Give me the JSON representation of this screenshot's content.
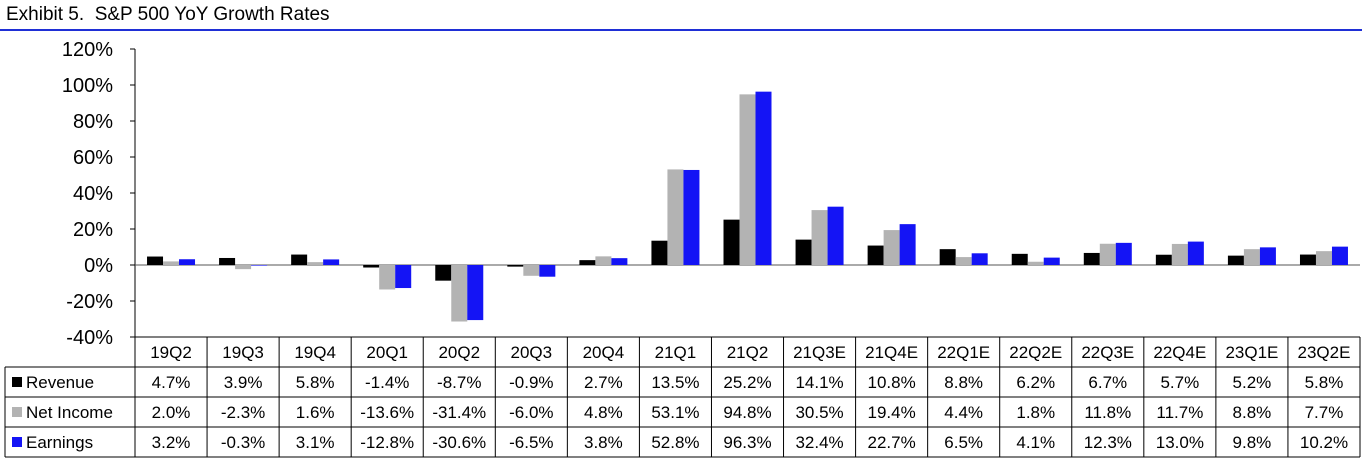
{
  "page_title": "Exhibit 5.  S&P 500 YoY Growth Rates",
  "chart_data": {
    "type": "bar",
    "title": "Exhibit 5.  S&P 500 YoY Growth Rates",
    "categories": [
      "19Q2",
      "19Q3",
      "19Q4",
      "20Q1",
      "20Q2",
      "20Q3",
      "20Q4",
      "21Q1",
      "21Q2",
      "21Q3E",
      "21Q4E",
      "22Q1E",
      "22Q2E",
      "22Q3E",
      "22Q4E",
      "23Q1E",
      "23Q2E"
    ],
    "ylim": [
      -40,
      120
    ],
    "yticks": [
      -40,
      -20,
      0,
      20,
      40,
      60,
      80,
      100,
      120
    ],
    "ytick_labels": [
      "-40%",
      "-20%",
      "0%",
      "20%",
      "40%",
      "60%",
      "80%",
      "100%",
      "120%"
    ],
    "grid": false,
    "legend": "data-table-left",
    "series": [
      {
        "name": "Revenue",
        "color": "#000000",
        "values": [
          4.7,
          3.9,
          5.8,
          -1.4,
          -8.7,
          -0.9,
          2.7,
          13.5,
          25.2,
          14.1,
          10.8,
          8.8,
          6.2,
          6.7,
          5.7,
          5.2,
          5.8
        ],
        "labels": [
          "4.7%",
          "3.9%",
          "5.8%",
          "-1.4%",
          "-8.7%",
          "-0.9%",
          "2.7%",
          "13.5%",
          "25.2%",
          "14.1%",
          "10.8%",
          "8.8%",
          "6.2%",
          "6.7%",
          "5.7%",
          "5.2%",
          "5.8%"
        ]
      },
      {
        "name": "Net Income",
        "color": "#b3b3b3",
        "values": [
          2.0,
          -2.3,
          1.6,
          -13.6,
          -31.4,
          -6.0,
          4.8,
          53.1,
          94.8,
          30.5,
          19.4,
          4.4,
          1.8,
          11.8,
          11.7,
          8.8,
          7.7
        ],
        "labels": [
          "2.0%",
          "-2.3%",
          "1.6%",
          "-13.6%",
          "-31.4%",
          "-6.0%",
          "4.8%",
          "53.1%",
          "94.8%",
          "30.5%",
          "19.4%",
          "4.4%",
          "1.8%",
          "11.8%",
          "11.7%",
          "8.8%",
          "7.7%"
        ]
      },
      {
        "name": "Earnings",
        "color": "#1414f5",
        "values": [
          3.2,
          -0.3,
          3.1,
          -12.8,
          -30.6,
          -6.5,
          3.8,
          52.8,
          96.3,
          32.4,
          22.7,
          6.5,
          4.1,
          12.3,
          13.0,
          9.8,
          10.2
        ],
        "labels": [
          "3.2%",
          "-0.3%",
          "3.1%",
          "-12.8%",
          "-30.6%",
          "-6.5%",
          "3.8%",
          "52.8%",
          "96.3%",
          "32.4%",
          "22.7%",
          "6.5%",
          "4.1%",
          "12.3%",
          "13.0%",
          "9.8%",
          "10.2%"
        ]
      }
    ]
  }
}
